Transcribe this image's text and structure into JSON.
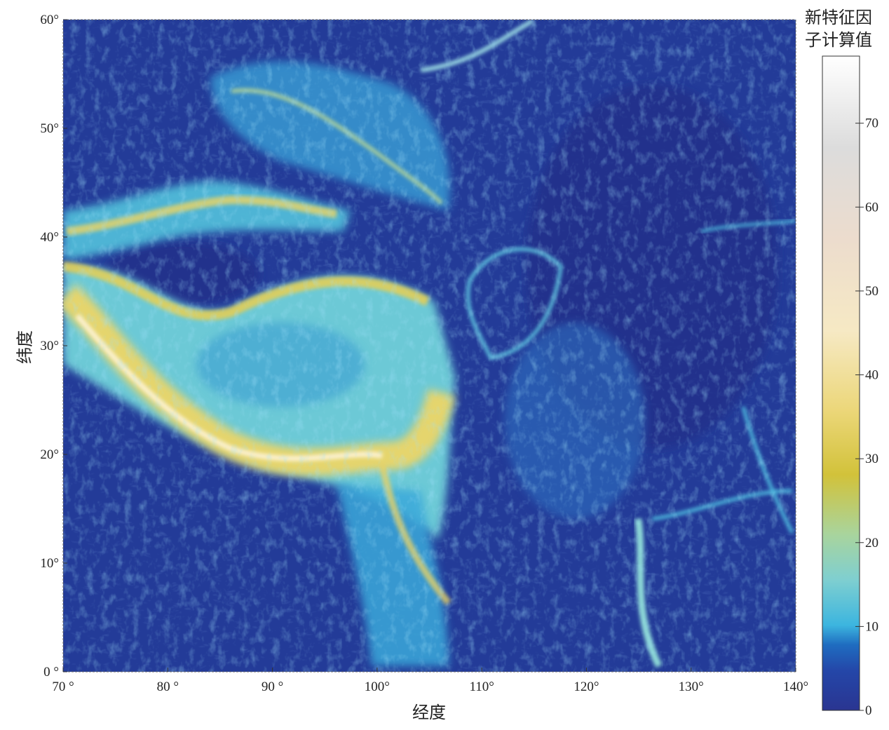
{
  "map": {
    "xlabel": "经度",
    "ylabel": "纬度",
    "xlim": [
      70,
      140
    ],
    "ylim": [
      0,
      60
    ],
    "xticks": [
      {
        "value": 70,
        "label": "70 °"
      },
      {
        "value": 80,
        "label": "80 °"
      },
      {
        "value": 90,
        "label": "90 °"
      },
      {
        "value": 100,
        "label": "100°"
      },
      {
        "value": 110,
        "label": "110°"
      },
      {
        "value": 120,
        "label": "120°"
      },
      {
        "value": 130,
        "label": "130°"
      },
      {
        "value": 140,
        "label": "140°"
      }
    ],
    "yticks": [
      {
        "value": 0,
        "label": "0 °"
      },
      {
        "value": 10,
        "label": "10°"
      },
      {
        "value": 20,
        "label": "20°"
      },
      {
        "value": 30,
        "label": "30°"
      },
      {
        "value": 40,
        "label": "40°"
      },
      {
        "value": 50,
        "label": "50°"
      },
      {
        "value": 60,
        "label": "60°"
      }
    ]
  },
  "colorbar": {
    "title_lines": [
      "新特征因",
      "子计算值"
    ],
    "lim": [
      0,
      78
    ],
    "ticks": [
      0,
      10,
      20,
      30,
      40,
      50,
      60,
      70
    ]
  }
}
